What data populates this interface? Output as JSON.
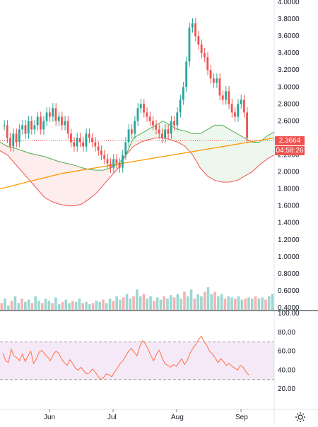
{
  "price_axis": {
    "labels": [
      "4.0000",
      "3.8000",
      "3.6000",
      "3.4000",
      "3.2000",
      "3.0000",
      "2.8000",
      "2.6000",
      "2.2000",
      "2.0000",
      "1.8000",
      "1.6000",
      "1.4000",
      "1.2000",
      "1.0000",
      "0.8000",
      "0.6000",
      "0.4000"
    ]
  },
  "time_axis": {
    "labels": [
      "Jun",
      "Jul",
      "Aug",
      "Sep"
    ]
  },
  "badges": {
    "last_price": "2.3664",
    "countdown": "04:58:26"
  },
  "rsi": {
    "axis_labels": [
      "100.00",
      "80.00",
      "60.00",
      "40.00",
      "20.00"
    ],
    "upper_band": 70,
    "lower_band": 30,
    "values": [
      58,
      50,
      48,
      62,
      55,
      53,
      50,
      57,
      49,
      55,
      60,
      47,
      52,
      59,
      61,
      57,
      54,
      50,
      56,
      60,
      58,
      52,
      48,
      45,
      51,
      47,
      42,
      40,
      43,
      39,
      36,
      37,
      41,
      38,
      34,
      30,
      32,
      36,
      35,
      33,
      38,
      42,
      47,
      50,
      55,
      60,
      63,
      59,
      55,
      65,
      71,
      68,
      62,
      55,
      50,
      57,
      61,
      53,
      47,
      45,
      43,
      46,
      44,
      48,
      52,
      46,
      50,
      58,
      63,
      67,
      72,
      76,
      70,
      66,
      60,
      57,
      53,
      48,
      52,
      49,
      45,
      47,
      44,
      42,
      40,
      45,
      43,
      38,
      35
    ]
  },
  "colors": {
    "up": "#26a69a",
    "down": "#ef5350",
    "ma": "#ff9800",
    "cloud_green": "#4caf50",
    "cloud_red": "#ef5350",
    "rsi_line": "#ff7043",
    "rsi_band": "#9c27b0"
  },
  "icons": {
    "settings": "gear-icon"
  },
  "chart_data": {
    "type": "candlestick",
    "ylim": [
      0.4,
      4.0
    ],
    "last_price": 2.3664,
    "closes": [
      2.55,
      2.4,
      2.3,
      2.45,
      2.35,
      2.5,
      2.55,
      2.45,
      2.6,
      2.5,
      2.55,
      2.65,
      2.5,
      2.6,
      2.7,
      2.65,
      2.75,
      2.6,
      2.65,
      2.55,
      2.6,
      2.45,
      2.35,
      2.3,
      2.4,
      2.35,
      2.3,
      2.45,
      2.4,
      2.35,
      2.3,
      2.25,
      2.2,
      2.15,
      2.1,
      2.05,
      2.15,
      2.1,
      2.05,
      2.2,
      2.35,
      2.5,
      2.45,
      2.6,
      2.75,
      2.8,
      2.7,
      2.65,
      2.6,
      2.55,
      2.5,
      2.45,
      2.4,
      2.5,
      2.45,
      2.6,
      2.55,
      2.7,
      2.85,
      3.0,
      3.3,
      3.7,
      3.75,
      3.6,
      3.5,
      3.4,
      3.35,
      3.2,
      3.1,
      3.05,
      3.1,
      2.9,
      2.85,
      2.95,
      2.8,
      2.7,
      2.65,
      2.8,
      2.85,
      2.7,
      2.4
    ],
    "ma": [
      1.8,
      1.83,
      1.86,
      1.89,
      1.92,
      1.95,
      1.98,
      2.0,
      2.02,
      2.04,
      2.06,
      2.08,
      2.1,
      2.12,
      2.14,
      2.16,
      2.18,
      2.2,
      2.22,
      2.24,
      2.26,
      2.28,
      2.3,
      2.32,
      2.34,
      2.36,
      2.38,
      2.4
    ],
    "cloud_upper": [
      2.35,
      2.3,
      2.28,
      2.25,
      2.22,
      2.2,
      2.18,
      2.15,
      2.12,
      2.1,
      2.08,
      2.05,
      2.03,
      2.02,
      2.02,
      2.05,
      2.1,
      2.2,
      2.4,
      2.45,
      2.5,
      2.55,
      2.6,
      2.55,
      2.5,
      2.48,
      2.45,
      2.45,
      2.5,
      2.55,
      2.55,
      2.5,
      2.45,
      2.4,
      2.35,
      2.35,
      2.42,
      2.47
    ],
    "cloud_lower": [
      2.25,
      2.2,
      2.1,
      2.0,
      1.9,
      1.8,
      1.7,
      1.65,
      1.62,
      1.6,
      1.6,
      1.62,
      1.68,
      1.75,
      1.85,
      1.95,
      2.05,
      2.2,
      2.3,
      2.35,
      2.38,
      2.4,
      2.4,
      2.38,
      2.35,
      2.3,
      2.2,
      2.05,
      1.95,
      1.9,
      1.88,
      1.88,
      1.9,
      1.95,
      2.0,
      2.08,
      2.15,
      2.2
    ],
    "volumes": [
      0.3,
      0.5,
      0.2,
      0.4,
      0.6,
      0.3,
      0.5,
      0.35,
      0.45,
      0.3,
      0.6,
      0.4,
      0.3,
      0.5,
      0.4,
      0.3,
      0.55,
      0.25,
      0.35,
      0.45,
      0.3,
      0.4,
      0.35,
      0.5,
      0.3,
      0.35,
      0.25,
      0.3,
      0.4,
      0.35,
      0.45,
      0.3,
      0.5,
      0.4,
      0.6,
      0.45,
      0.55,
      0.7,
      0.5,
      0.6,
      0.9,
      0.6,
      0.7,
      0.5,
      0.6,
      0.4,
      0.55,
      0.45,
      0.6,
      0.5,
      0.65,
      0.55,
      0.7,
      0.5,
      0.8,
      0.6,
      0.9,
      0.5,
      0.7,
      0.6,
      0.8,
      1.0,
      0.7,
      0.8,
      0.6,
      0.7,
      0.5,
      0.6,
      0.55,
      0.5,
      0.6,
      0.45,
      0.5,
      0.55,
      0.5,
      0.6,
      0.5,
      0.55,
      0.45,
      0.6,
      0.7
    ]
  }
}
